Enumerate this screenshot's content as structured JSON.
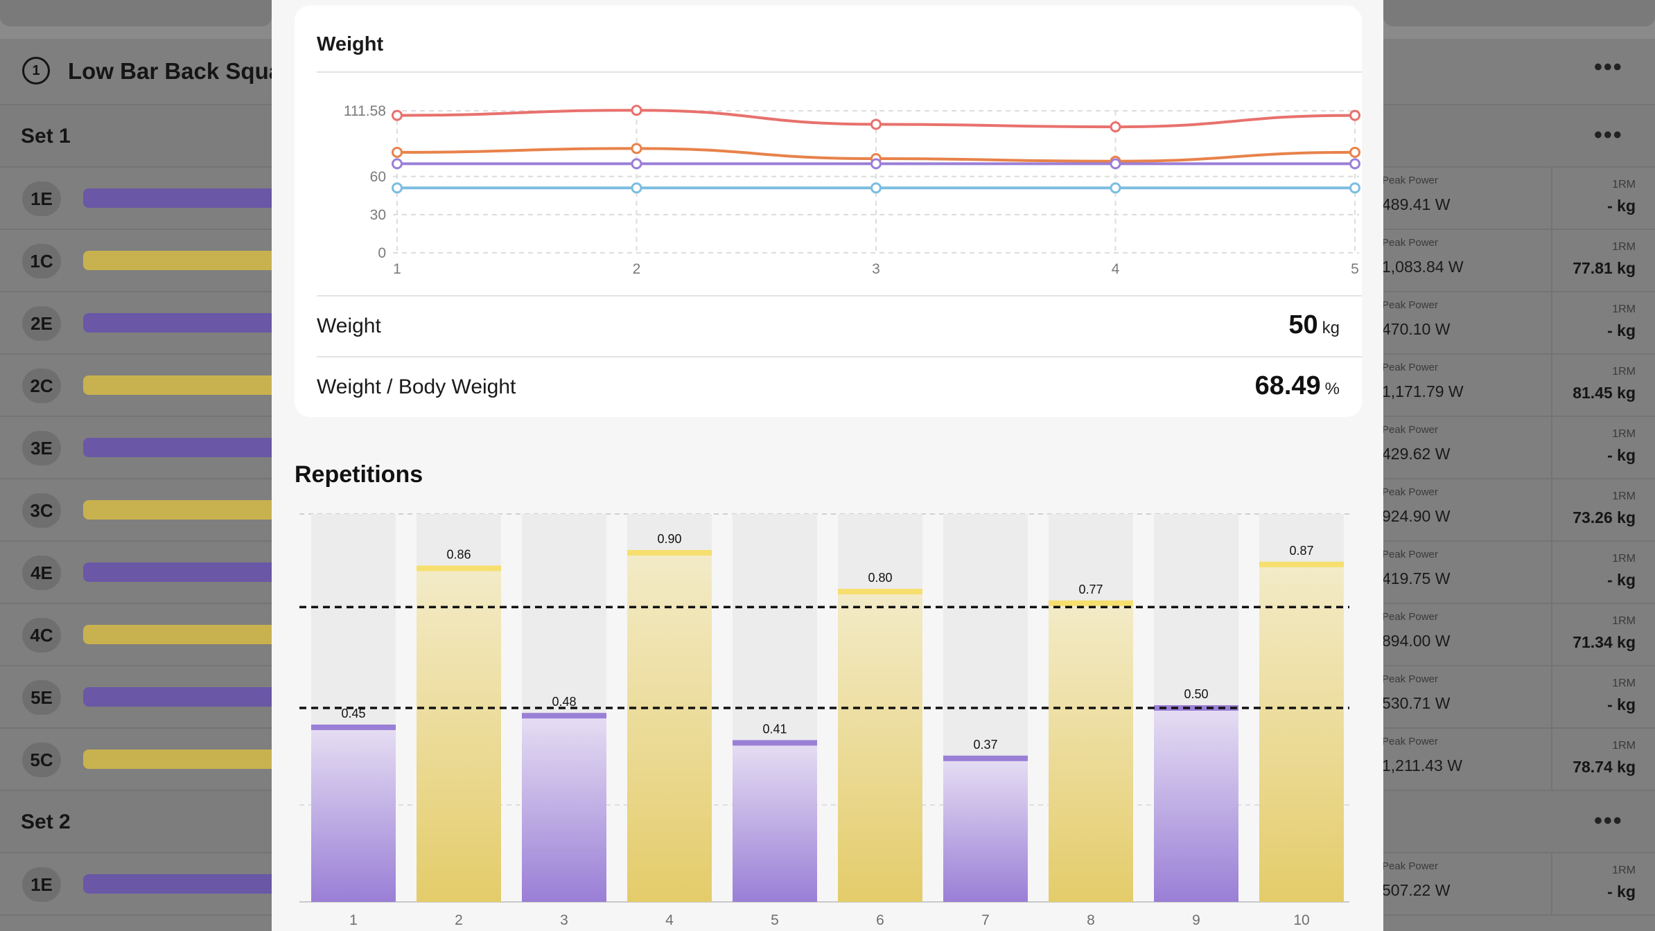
{
  "background": {
    "exercise": {
      "number": "1",
      "title": "Low Bar Back Squat"
    },
    "sets": [
      {
        "label": "Set 1",
        "reps": [
          {
            "label": "1E",
            "type": "E",
            "power_label": "Peak Power",
            "power": "489.41 W",
            "orm_label": "1RM",
            "orm": "- kg"
          },
          {
            "label": "1C",
            "type": "C",
            "power_label": "Peak Power",
            "power": "1,083.84 W",
            "orm_label": "1RM",
            "orm": "77.81 kg"
          },
          {
            "label": "2E",
            "type": "E",
            "power_label": "Peak Power",
            "power": "470.10 W",
            "orm_label": "1RM",
            "orm": "- kg"
          },
          {
            "label": "2C",
            "type": "C",
            "power_label": "Peak Power",
            "power": "1,171.79 W",
            "orm_label": "1RM",
            "orm": "81.45 kg"
          },
          {
            "label": "3E",
            "type": "E",
            "power_label": "Peak Power",
            "power": "429.62 W",
            "orm_label": "1RM",
            "orm": "- kg"
          },
          {
            "label": "3C",
            "type": "C",
            "power_label": "Peak Power",
            "power": "924.90 W",
            "orm_label": "1RM",
            "orm": "73.26 kg"
          },
          {
            "label": "4E",
            "type": "E",
            "power_label": "Peak Power",
            "power": "419.75 W",
            "orm_label": "1RM",
            "orm": "- kg"
          },
          {
            "label": "4C",
            "type": "C",
            "power_label": "Peak Power",
            "power": "894.00 W",
            "orm_label": "1RM",
            "orm": "71.34 kg"
          },
          {
            "label": "5E",
            "type": "E",
            "power_label": "Peak Power",
            "power": "530.71 W",
            "orm_label": "1RM",
            "orm": "- kg"
          },
          {
            "label": "5C",
            "type": "C",
            "power_label": "Peak Power",
            "power": "1,211.43 W",
            "orm_label": "1RM",
            "orm": "78.74 kg"
          }
        ]
      },
      {
        "label": "Set 2",
        "reps": [
          {
            "label": "1E",
            "type": "E",
            "power_label": "Peak Power",
            "power": "507.22 W",
            "orm_label": "1RM",
            "orm": "- kg"
          }
        ]
      }
    ],
    "colors": {
      "eccentric": "#6a57a6",
      "concentric": "#c8b24f"
    }
  },
  "weight_card": {
    "title": "Weight",
    "metrics": [
      {
        "label": "Weight",
        "value": "50",
        "unit": "kg"
      },
      {
        "label": "Weight / Body Weight",
        "value": "68.49",
        "unit": "%"
      }
    ]
  },
  "repetitions": {
    "title": "Repetitions"
  },
  "chart_data": [
    {
      "type": "line",
      "title": "Weight",
      "x": [
        1,
        2,
        3,
        4,
        5
      ],
      "y_ticks": [
        "0",
        "30",
        "60",
        "111.58"
      ],
      "ylim": [
        0,
        111.58
      ],
      "grid": true,
      "series": [
        {
          "color": "#e8716d",
          "values": [
            108,
            112,
            101,
            99,
            108
          ]
        },
        {
          "color": "#e8824a",
          "values": [
            79,
            82,
            74,
            72,
            79
          ]
        },
        {
          "color": "#9b7fd6",
          "values": [
            70,
            70,
            70,
            70,
            70
          ]
        },
        {
          "color": "#7cbde0",
          "values": [
            51,
            51,
            51,
            51,
            51
          ]
        }
      ]
    },
    {
      "type": "bar",
      "categories": [
        "1",
        "2",
        "3",
        "4",
        "5",
        "6",
        "7",
        "8",
        "9",
        "10"
      ],
      "values": [
        0.45,
        0.86,
        0.48,
        0.9,
        0.41,
        0.8,
        0.37,
        0.77,
        0.5,
        0.87
      ],
      "labels": [
        "0.45",
        "0.86",
        "0.48",
        "0.90",
        "0.41",
        "0.80",
        "0.37",
        "0.77",
        "0.50",
        "0.87"
      ],
      "bar_types": [
        "E",
        "C",
        "E",
        "C",
        "E",
        "C",
        "E",
        "C",
        "E",
        "C"
      ],
      "ylim": [
        0,
        1.0
      ],
      "reference_lines": [
        0.5,
        0.76
      ],
      "colors": {
        "E": "#9a7fd6",
        "C": "#e4cc6a"
      }
    }
  ]
}
